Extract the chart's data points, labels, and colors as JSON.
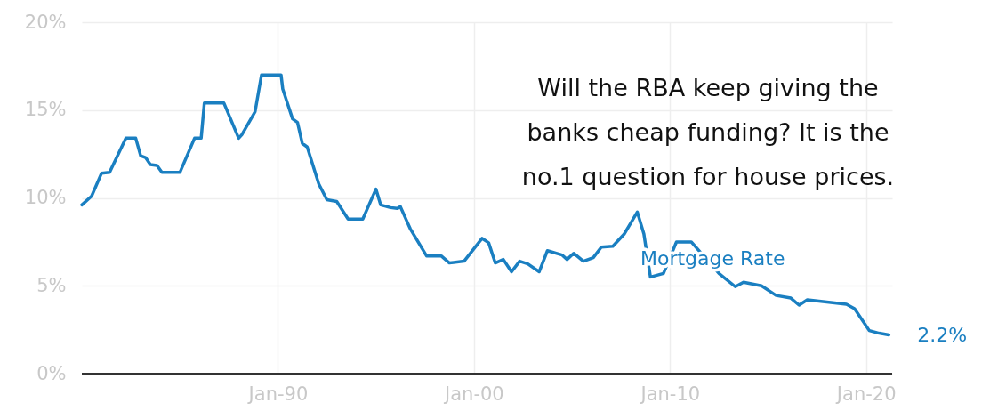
{
  "chart_data": {
    "type": "line",
    "x": [
      "1980-01",
      "1980-07",
      "1981-01",
      "1981-06",
      "1982-04",
      "1982-10",
      "1983-01",
      "1983-04",
      "1983-07",
      "1983-11",
      "1984-02",
      "1985-01",
      "1985-10",
      "1986-02",
      "1986-04",
      "1987-04",
      "1988-01",
      "1988-03",
      "1988-11",
      "1989-03",
      "1990-03",
      "1990-04",
      "1990-10",
      "1991-01",
      "1991-04",
      "1991-07",
      "1992-02",
      "1992-07",
      "1993-01",
      "1993-08",
      "1994-05",
      "1995-01",
      "1995-04",
      "1995-10",
      "1996-02",
      "1996-04",
      "1996-10",
      "1997-08",
      "1998-05",
      "1998-10",
      "1999-07",
      "2000-06",
      "2000-10",
      "2001-02",
      "2001-07",
      "2001-12",
      "2002-05",
      "2002-10",
      "2003-05",
      "2003-10",
      "2004-07",
      "2004-10",
      "2005-02",
      "2005-08",
      "2006-02",
      "2006-07",
      "2007-02",
      "2007-09",
      "2008-05",
      "2008-09",
      "2009-01",
      "2009-09",
      "2010-05",
      "2011-02",
      "2012-07",
      "2013-05",
      "2013-10",
      "2014-09",
      "2015-06",
      "2016-03",
      "2016-08",
      "2017-01",
      "2019-01",
      "2019-06",
      "2020-03",
      "2020-09",
      "2021-03"
    ],
    "series": [
      {
        "name": "Mortgage Rate",
        "color": "#1a7fc1",
        "values": [
          9.6,
          10.1,
          11.4,
          11.45,
          13.4,
          13.4,
          12.4,
          12.3,
          11.9,
          11.85,
          11.45,
          11.45,
          13.4,
          13.4,
          15.4,
          15.4,
          13.4,
          13.6,
          14.9,
          17.0,
          17.0,
          16.2,
          14.5,
          14.3,
          13.1,
          12.9,
          10.8,
          9.9,
          9.8,
          8.8,
          8.8,
          10.5,
          9.6,
          9.45,
          9.4,
          9.5,
          8.25,
          6.7,
          6.7,
          6.3,
          6.4,
          7.7,
          7.45,
          6.3,
          6.5,
          5.8,
          6.4,
          6.25,
          5.8,
          7.0,
          6.75,
          6.5,
          6.85,
          6.4,
          6.6,
          7.2,
          7.25,
          7.95,
          9.2,
          7.95,
          5.5,
          5.7,
          7.5,
          7.5,
          5.7,
          4.95,
          5.2,
          5.0,
          4.45,
          4.3,
          3.9,
          4.2,
          3.95,
          3.7,
          2.45,
          2.3,
          2.2
        ]
      }
    ],
    "xlim": [
      "1980-01",
      "2021-05"
    ],
    "xticks": [
      {
        "value": "1990-01",
        "label": "Jan-90"
      },
      {
        "value": "2000-01",
        "label": "Jan-00"
      },
      {
        "value": "2010-01",
        "label": "Jan-10"
      },
      {
        "value": "2020-01",
        "label": "Jan-20"
      }
    ],
    "ylim": [
      0,
      20
    ],
    "yticks": [
      {
        "value": 0,
        "label": "0%"
      },
      {
        "value": 5,
        "label": "5%"
      },
      {
        "value": 10,
        "label": "10%"
      },
      {
        "value": 15,
        "label": "15%"
      },
      {
        "value": 20,
        "label": "20%"
      }
    ],
    "grid": true,
    "legend": false,
    "marker": "none",
    "line_style": "solid",
    "annotations": [
      {
        "text": "2.2%",
        "x": "2021-03",
        "y": 2.2
      },
      "Will the RBA keep giving the\nbanks cheap funding? It is the\nno.1 question for house prices."
    ]
  }
}
